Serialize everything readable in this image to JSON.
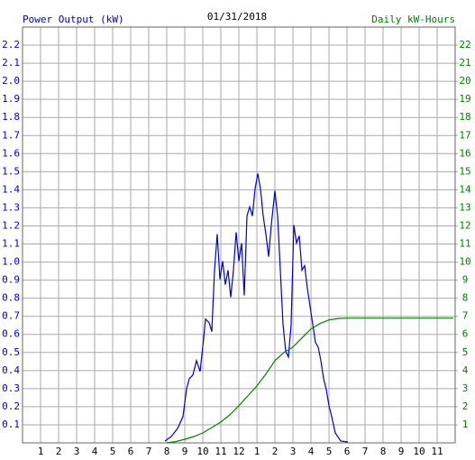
{
  "chart_data": {
    "type": "line",
    "title": "01/31/2018",
    "y_label": "Power Output (kW)",
    "y2_label": "Daily kW-Hours",
    "xlim": [
      0,
      24
    ],
    "xticks": [
      1,
      2,
      3,
      4,
      5,
      6,
      7,
      8,
      9,
      10,
      11,
      12,
      {
        "value": 13,
        "label": "1"
      },
      {
        "value": 14,
        "label": "2"
      },
      {
        "value": 15,
        "label": "3"
      },
      {
        "value": 16,
        "label": "4"
      },
      {
        "value": 17,
        "label": "5"
      },
      {
        "value": 18,
        "label": "6"
      },
      {
        "value": 19,
        "label": "7"
      },
      {
        "value": 20,
        "label": "8"
      },
      {
        "value": 21,
        "label": "9"
      },
      {
        "value": 22,
        "label": "10"
      },
      {
        "value": 23,
        "label": "11"
      }
    ],
    "ylim": [
      0,
      2.3
    ],
    "yticks": [
      0.1,
      0.2,
      0.3,
      0.4,
      0.5,
      0.6,
      0.7,
      0.8,
      0.9,
      {
        "value": 1,
        "label": "1.0"
      },
      1.1,
      1.2,
      1.3,
      1.4,
      1.5,
      1.6,
      1.7,
      1.8,
      1.9,
      {
        "value": 2,
        "label": "2.0"
      },
      2.1,
      2.2
    ],
    "y2lim": [
      0,
      23
    ],
    "y2ticks": [
      1,
      2,
      3,
      4,
      5,
      6,
      7,
      8,
      9,
      10,
      11,
      12,
      13,
      14,
      15,
      16,
      17,
      18,
      19,
      20,
      21,
      22
    ],
    "grid": true,
    "series": [
      {
        "name": "Power Output (kW)",
        "color": "#0000cc",
        "axis": "y",
        "x": [
          7.9,
          8.25,
          8.6,
          8.9,
          9.1,
          9.25,
          9.45,
          9.65,
          9.85,
          10.05,
          10.15,
          10.35,
          10.5,
          10.65,
          10.8,
          10.95,
          11.1,
          11.25,
          11.4,
          11.55,
          11.7,
          11.85,
          12,
          12.15,
          12.3,
          12.45,
          12.6,
          12.75,
          12.9,
          13.05,
          13.2,
          13.35,
          13.5,
          13.65,
          13.8,
          14,
          14.15,
          14.3,
          14.45,
          14.6,
          14.75,
          14.9,
          15.05,
          15.2,
          15.35,
          15.5,
          15.65,
          15.8,
          15.95,
          16.1,
          16.25,
          16.4,
          16.55,
          16.7,
          16.85,
          17,
          17.15,
          17.35,
          17.65,
          18.05
        ],
        "values": [
          0.01,
          0.035,
          0.08,
          0.145,
          0.3,
          0.355,
          0.375,
          0.455,
          0.395,
          0.58,
          0.685,
          0.665,
          0.615,
          0.955,
          1.155,
          0.905,
          1.005,
          0.875,
          0.955,
          0.805,
          0.955,
          1.165,
          1.005,
          1.105,
          0.815,
          1.255,
          1.305,
          1.255,
          1.405,
          1.49,
          1.405,
          1.255,
          1.155,
          1.03,
          1.205,
          1.395,
          1.255,
          0.955,
          0.655,
          0.505,
          0.475,
          0.655,
          1.205,
          1.105,
          1.145,
          0.955,
          0.98,
          0.855,
          0.755,
          0.655,
          0.555,
          0.53,
          0.455,
          0.355,
          0.295,
          0.205,
          0.145,
          0.055,
          0.01,
          0.005
        ]
      },
      {
        "name": "Daily kW-Hours",
        "color": "#008000",
        "axis": "y2",
        "x": [
          8,
          8.5,
          9,
          9.5,
          10,
          10.5,
          11,
          11.5,
          12,
          12.5,
          13,
          13.5,
          14,
          14.5,
          15,
          15.5,
          16,
          16.5,
          17,
          17.5,
          18,
          23.9
        ],
        "values": [
          0,
          0.07,
          0.2,
          0.35,
          0.55,
          0.85,
          1.15,
          1.55,
          2.05,
          2.6,
          3.15,
          3.8,
          4.55,
          5.0,
          5.3,
          5.8,
          6.3,
          6.6,
          6.8,
          6.88,
          6.9,
          6.9
        ]
      }
    ]
  }
}
